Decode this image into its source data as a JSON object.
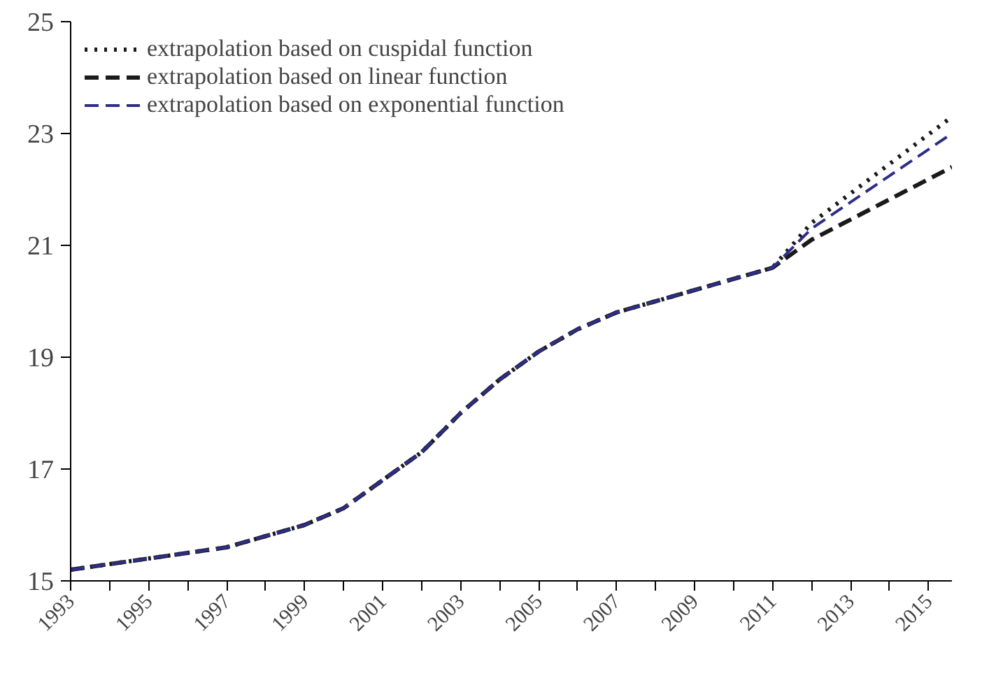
{
  "chart_data": {
    "type": "line",
    "xlim": [
      1993,
      2015.6
    ],
    "ylim": [
      15,
      25
    ],
    "xticks": [
      1993,
      {
        "value": 1994,
        "label": null
      },
      1995,
      {
        "value": 1996,
        "label": null
      },
      1997,
      {
        "value": 1998,
        "label": null
      },
      1999,
      {
        "value": 2000,
        "label": null
      },
      2001,
      {
        "value": 2002,
        "label": null
      },
      2003,
      {
        "value": 2004,
        "label": null
      },
      2005,
      {
        "value": 2006,
        "label": null
      },
      2007,
      {
        "value": 2008,
        "label": null
      },
      2009,
      {
        "value": 2010,
        "label": null
      },
      2011,
      {
        "value": 2012,
        "label": null
      },
      2013,
      {
        "value": 2014,
        "label": null
      },
      2015
    ],
    "yticks": [
      15,
      17,
      19,
      21,
      23,
      25
    ],
    "grid": false,
    "legend": "top left",
    "series": [
      {
        "name": "extrapolation based on cuspidal function",
        "color": "#1a1a1a",
        "line_style": "dotted",
        "x": [
          1993,
          1994,
          1995,
          1996,
          1997,
          1998,
          1999,
          2000,
          2001,
          2002,
          2003,
          2004,
          2005,
          2006,
          2007,
          2008,
          2009,
          2010,
          2011,
          2012,
          2015.6
        ],
        "values": [
          15.2,
          15.3,
          15.4,
          15.5,
          15.6,
          15.8,
          16.0,
          16.3,
          16.8,
          17.3,
          18.0,
          18.6,
          19.1,
          19.5,
          19.8,
          20.0,
          20.2,
          20.4,
          20.6,
          21.4,
          23.3
        ]
      },
      {
        "name": "extrapolation based on linear function",
        "color": "#1a1a1a",
        "line_style": "dashed",
        "x": [
          1993,
          1994,
          1995,
          1996,
          1997,
          1998,
          1999,
          2000,
          2001,
          2002,
          2003,
          2004,
          2005,
          2006,
          2007,
          2008,
          2009,
          2010,
          2011,
          2012,
          2015.6
        ],
        "values": [
          15.2,
          15.3,
          15.4,
          15.5,
          15.6,
          15.8,
          16.0,
          16.3,
          16.8,
          17.3,
          18.0,
          18.6,
          19.1,
          19.5,
          19.8,
          20.0,
          20.2,
          20.4,
          20.6,
          21.1,
          22.4
        ]
      },
      {
        "name": "extrapolation based on exponential function",
        "color": "#2e2e8a",
        "line_style": "dashed",
        "x": [
          1993,
          1994,
          1995,
          1996,
          1997,
          1998,
          1999,
          2000,
          2001,
          2002,
          2003,
          2004,
          2005,
          2006,
          2007,
          2008,
          2009,
          2010,
          2011,
          2012,
          2015.6
        ],
        "values": [
          15.2,
          15.3,
          15.4,
          15.5,
          15.6,
          15.8,
          16.0,
          16.3,
          16.8,
          17.3,
          18.0,
          18.6,
          19.1,
          19.5,
          19.8,
          20.0,
          20.2,
          20.4,
          20.6,
          21.3,
          23.0
        ]
      }
    ]
  }
}
